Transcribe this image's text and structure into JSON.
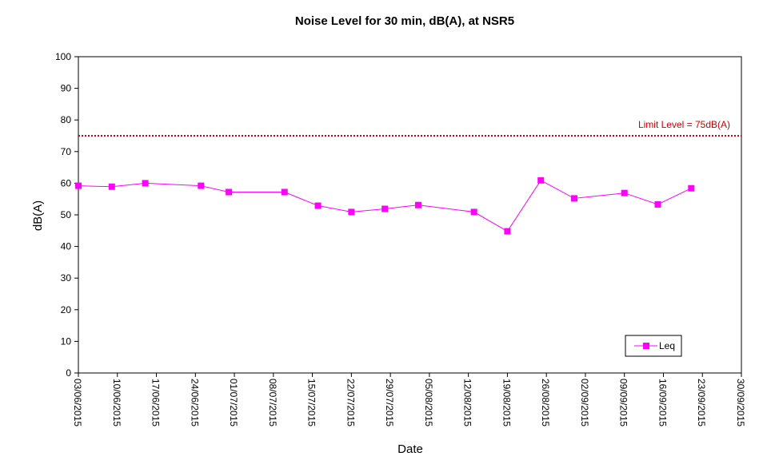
{
  "chart_data": {
    "type": "line",
    "title": "Noise Level for 30 min, dB(A), at NSR5",
    "xlabel": "Date",
    "ylabel": "dB(A)",
    "ylim": [
      0,
      100
    ],
    "y_ticks": [
      0,
      10,
      20,
      30,
      40,
      50,
      60,
      70,
      80,
      90,
      100
    ],
    "xlim": [
      "03/06/2015",
      "30/09/2015"
    ],
    "x_ticks": [
      "03/06/2015",
      "10/06/2015",
      "17/06/2015",
      "24/06/2015",
      "01/07/2015",
      "08/07/2015",
      "15/07/2015",
      "22/07/2015",
      "29/07/2015",
      "05/08/2015",
      "12/08/2015",
      "19/08/2015",
      "26/08/2015",
      "02/09/2015",
      "09/09/2015",
      "16/09/2015",
      "23/09/2015",
      "30/09/2015"
    ],
    "grid": false,
    "legend_position": "bottom-right",
    "limit_line": {
      "value": 75,
      "label": "Limit Level = 75dB(A)",
      "color": "#cc0000"
    },
    "series": [
      {
        "name": "Leq",
        "color": "#ff00ff",
        "points": [
          {
            "x": "03/06/2015",
            "y": 59.2
          },
          {
            "x": "09/06/2015",
            "y": 58.9
          },
          {
            "x": "15/06/2015",
            "y": 60.0
          },
          {
            "x": "25/06/2015",
            "y": 59.2
          },
          {
            "x": "30/06/2015",
            "y": 57.2
          },
          {
            "x": "10/07/2015",
            "y": 57.2
          },
          {
            "x": "16/07/2015",
            "y": 52.9
          },
          {
            "x": "22/07/2015",
            "y": 50.9
          },
          {
            "x": "28/07/2015",
            "y": 51.9
          },
          {
            "x": "03/08/2015",
            "y": 53.1
          },
          {
            "x": "13/08/2015",
            "y": 50.9
          },
          {
            "x": "19/08/2015",
            "y": 44.8
          },
          {
            "x": "25/08/2015",
            "y": 60.9
          },
          {
            "x": "31/08/2015",
            "y": 55.2
          },
          {
            "x": "09/09/2015",
            "y": 56.9
          },
          {
            "x": "15/09/2015",
            "y": 53.3
          },
          {
            "x": "21/09/2015",
            "y": 58.4
          }
        ]
      }
    ]
  }
}
